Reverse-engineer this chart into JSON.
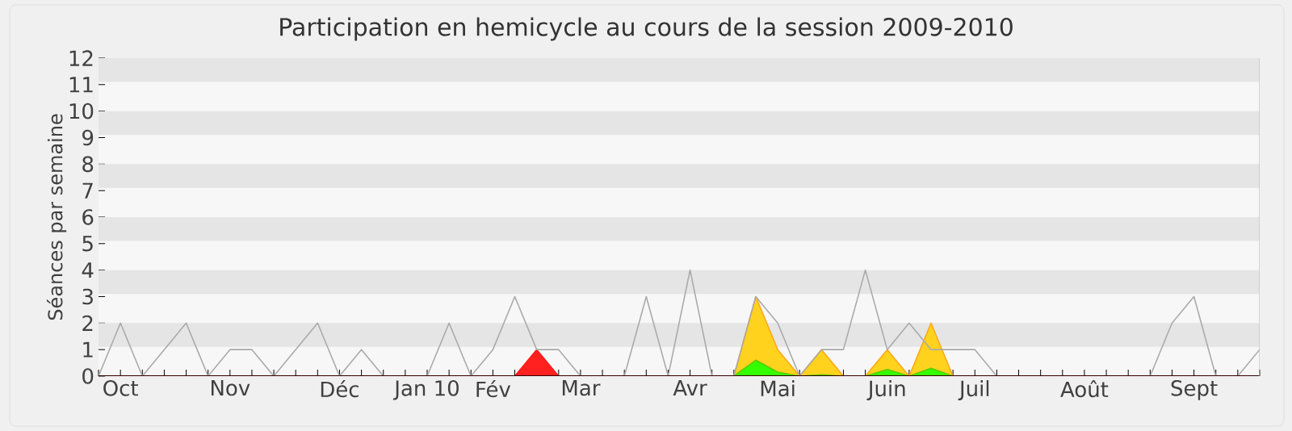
{
  "chart_data": {
    "type": "line",
    "title": "Participation en hemicycle au cours de la session 2009-2010",
    "ylabel": "Séances par semaine",
    "categories": [
      null,
      "Oct",
      null,
      null,
      null,
      null,
      "Nov",
      null,
      null,
      null,
      null,
      "Déc",
      null,
      null,
      null,
      "Jan 10",
      null,
      null,
      "Fév",
      null,
      null,
      null,
      "Mar",
      null,
      null,
      null,
      null,
      "Avr",
      null,
      null,
      null,
      "Mai",
      null,
      null,
      null,
      null,
      "Juin",
      null,
      null,
      null,
      "Juil",
      null,
      null,
      null,
      null,
      "Août",
      null,
      null,
      null,
      null,
      "Sept",
      null,
      null,
      null
    ],
    "series": [
      {
        "color": "#aaaaaa",
        "values": [
          0,
          2,
          0,
          1,
          2,
          0,
          1,
          1,
          0,
          1,
          2,
          0,
          1,
          0,
          0,
          0,
          2,
          0,
          1,
          3,
          1,
          1,
          0,
          0,
          0,
          3,
          0,
          4,
          0,
          0,
          3,
          2,
          0,
          1,
          1,
          4,
          1,
          2,
          1,
          1,
          1,
          0,
          null,
          null,
          null,
          null,
          null,
          null,
          0,
          2,
          3,
          0,
          0,
          1
        ]
      },
      {
        "type": "area",
        "color": "#ff2020",
        "values": [
          0,
          0,
          0,
          0,
          0,
          0,
          0,
          0,
          0,
          0,
          0,
          0,
          0,
          0,
          0,
          0,
          0,
          0,
          0,
          0,
          1,
          0,
          0,
          0,
          0,
          0,
          0,
          0,
          0,
          0,
          0,
          0,
          0,
          0,
          0,
          0,
          0,
          0,
          0,
          0,
          0,
          0,
          0,
          0,
          0,
          0,
          0,
          0,
          0,
          0,
          0,
          0,
          0,
          0
        ]
      },
      {
        "type": "area",
        "color": "#ffd21e",
        "values": [
          0,
          0,
          0,
          0,
          0,
          0,
          0,
          0,
          0,
          0,
          0,
          0,
          0,
          0,
          0,
          0,
          0,
          0,
          0,
          0,
          0,
          0,
          0,
          0,
          0,
          0,
          0,
          0,
          0,
          0,
          3,
          1,
          0,
          1,
          0,
          0,
          1,
          0,
          2,
          0,
          0,
          0,
          0,
          0,
          0,
          0,
          0,
          0,
          0,
          0,
          0,
          0,
          0,
          0
        ]
      },
      {
        "type": "area",
        "color": "#33ff00",
        "values": [
          0,
          0,
          0,
          0,
          0,
          0,
          0,
          0,
          0,
          0,
          0,
          0,
          0,
          0,
          0,
          0,
          0,
          0,
          0,
          0,
          0,
          0,
          0,
          0,
          0,
          0,
          0,
          0,
          0,
          0,
          0.6,
          0.15,
          0,
          0.05,
          0,
          0,
          0.25,
          0,
          0.3,
          0,
          0,
          0,
          0,
          0,
          0,
          0,
          0,
          0,
          0,
          0,
          0,
          0,
          0,
          0
        ]
      }
    ],
    "ylim": [
      0,
      12
    ],
    "yticks": [
      0,
      1,
      2,
      3,
      4,
      5,
      6,
      7,
      8,
      9,
      10,
      11,
      12
    ]
  }
}
